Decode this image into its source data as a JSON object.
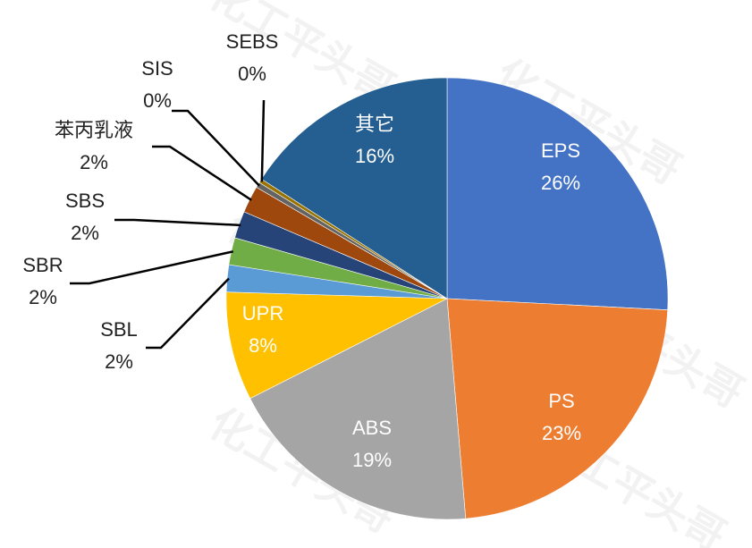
{
  "chart_data": {
    "type": "pie",
    "title": "",
    "slices": [
      {
        "name": "EPS",
        "value": 26,
        "label": "26%",
        "color": "#4472C4"
      },
      {
        "name": "PS",
        "value": 23,
        "label": "23%",
        "color": "#ED7D31"
      },
      {
        "name": "ABS",
        "value": 19,
        "label": "19%",
        "color": "#A5A5A5"
      },
      {
        "name": "UPR",
        "value": 8,
        "label": "8%",
        "color": "#FFC000"
      },
      {
        "name": "SBL",
        "value": 2,
        "label": "2%",
        "color": "#5B9BD5"
      },
      {
        "name": "SBR",
        "value": 2,
        "label": "2%",
        "color": "#70AD47"
      },
      {
        "name": "SBS",
        "value": 2,
        "label": "2%",
        "color": "#264478"
      },
      {
        "name": "苯丙乳液",
        "value": 2,
        "label": "2%",
        "color": "#9E480E"
      },
      {
        "name": "SIS",
        "value": 0.4,
        "label": "0%",
        "color": "#636363"
      },
      {
        "name": "SEBS",
        "value": 0.3,
        "label": "0%",
        "color": "#997300"
      },
      {
        "name": "其它",
        "value": 16,
        "label": "16%",
        "color": "#255E91"
      }
    ]
  },
  "watermark": "化工平头哥"
}
